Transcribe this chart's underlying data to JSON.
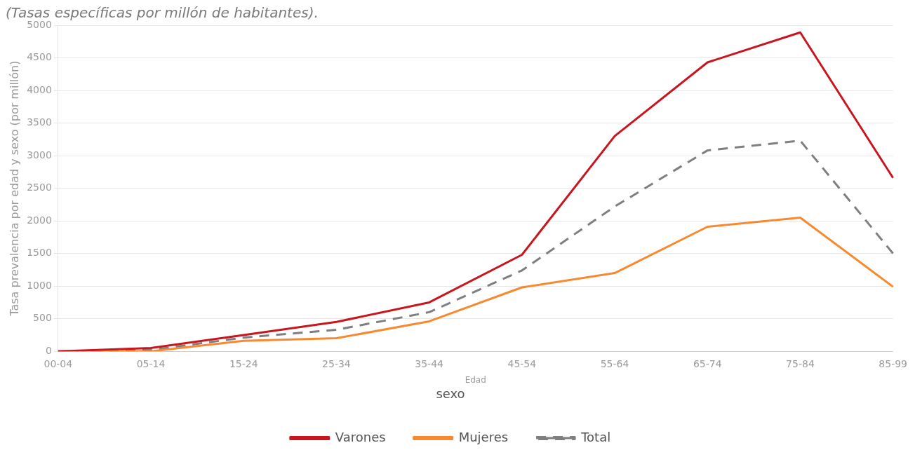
{
  "chart_data": {
    "type": "line",
    "subtitle": "(Tasas específicas por millón de habitantes).",
    "xlabel": "Edad",
    "ylabel": "Tasa prevalencia por edad y sexo (por millón)",
    "legend_title": "sexo",
    "categories": [
      "00-04",
      "05-14",
      "15-24",
      "25-34",
      "35-44",
      "45-54",
      "55-64",
      "65-74",
      "75-84",
      "85-99"
    ],
    "series": [
      {
        "name": "Varones",
        "color": "#c8161e",
        "line_style": "solid",
        "values": [
          0,
          50,
          250,
          450,
          750,
          1480,
          3300,
          4430,
          4890,
          2660
        ]
      },
      {
        "name": "Mujeres",
        "color": "#f78a30",
        "line_style": "solid",
        "values": [
          0,
          0,
          160,
          200,
          460,
          980,
          1200,
          1910,
          2050,
          990
        ]
      },
      {
        "name": "Total",
        "color": "#7f7f7f",
        "line_style": "dashed",
        "values": [
          0,
          20,
          210,
          330,
          600,
          1240,
          2220,
          3080,
          3230,
          1500
        ]
      }
    ],
    "ylim": [
      0,
      5000
    ],
    "yticks": [
      0,
      500,
      1000,
      1500,
      2000,
      2500,
      3000,
      3500,
      4000,
      4500,
      5000
    ],
    "grid": "y",
    "legend": "bottom",
    "marker": "none"
  }
}
